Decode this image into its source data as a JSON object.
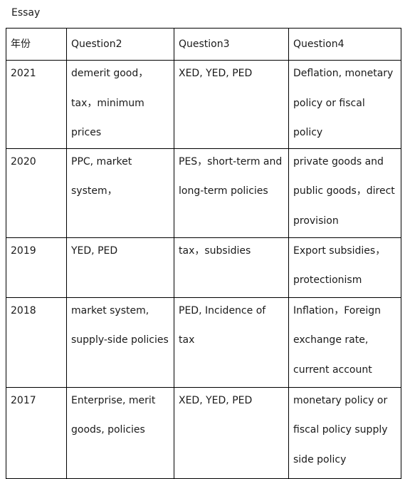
{
  "title": "Essay",
  "table": {
    "headers": [
      "年份",
      "Question2",
      "Question3",
      "Question4"
    ],
    "rows": [
      {
        "year": "2021",
        "q2": "demerit good，tax，minimum prices",
        "q3": "XED, YED, PED",
        "q4": "Deflation, monetary policy or fiscal policy"
      },
      {
        "year": "2020",
        "q2": "PPC, market system，",
        "q3": "PES，short-term and long-term policies",
        "q4": "private goods and public goods，direct provision"
      },
      {
        "year": "2019",
        "q2": "YED, PED",
        "q3": "tax，subsidies",
        "q4": "Export subsidies，protectionism"
      },
      {
        "year": "2018",
        "q2": "market system, supply-side policies",
        "q3": "PED, Incidence of tax",
        "q4": "Inflation，Foreign exchange rate, current account"
      },
      {
        "year": "2017",
        "q2": "Enterprise, merit goods, policies",
        "q3": "XED, YED, PED",
        "q4": "monetary policy or fiscal policy supply side policy"
      }
    ]
  }
}
